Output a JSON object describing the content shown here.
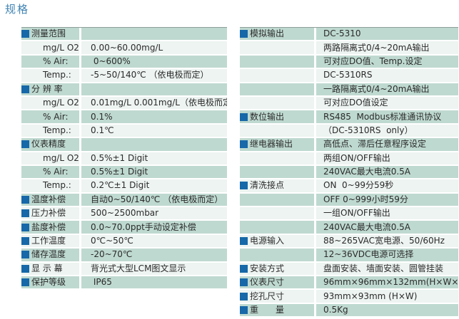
{
  "page": {
    "title": "规格"
  },
  "colors": {
    "title_blue": "#4285b3",
    "row_green": "#bed9d0",
    "row_pale": "#edf4f1",
    "square_blue": "#1668a8",
    "text": "#2b2b2b",
    "table_line": "#8e9e99"
  },
  "icons": {
    "bullet": "blue-square-bullet-icon"
  },
  "tables": {
    "left": {
      "rows": [
        {
          "label": "测量范围",
          "value": "",
          "header": true
        },
        {
          "label": "mg/L O2:",
          "value": "0.00~60.00mg/L",
          "sub": true
        },
        {
          "label": "% Air:",
          "value": " 0~600%",
          "sub": true
        },
        {
          "label": "Temp.:",
          "value": "-5~50/140℃ （依电极而定）",
          "sub": true
        },
        {
          "label": "分 辨 率",
          "value": "",
          "header": true
        },
        {
          "label": "mg/L O2:",
          "value": "0.01mg/L 0.001mg/L（依电极而定）",
          "sub": true
        },
        {
          "label": "% Air:",
          "value": "0.1%",
          "sub": true
        },
        {
          "label": "Temp.:",
          "value": "0.1℃",
          "sub": true
        },
        {
          "label": "仪表精度",
          "value": "",
          "header": true
        },
        {
          "label": "mg/L O2:",
          "value": "0.5%±1 Digit",
          "sub": true
        },
        {
          "label": "% Air:",
          "value": "0.5%±1 Digit",
          "sub": true
        },
        {
          "label": "Temp.:",
          "value": "0.2℃±1 Digit",
          "sub": true
        },
        {
          "label": "温度补偿",
          "value": "自动0~50/140℃ （依电极而定）",
          "header": true
        },
        {
          "label": "压力补偿",
          "value": "500~2500mbar",
          "header": true
        },
        {
          "label": "盐度补偿",
          "value": "0.0~70.0ppt手动设定补偿",
          "header": true
        },
        {
          "label": "工作温度",
          "value": "0℃~50℃",
          "header": true
        },
        {
          "label": "储存温度",
          "value": "-20~70℃",
          "header": true
        },
        {
          "label": "显 示 幕",
          "value": "背光式大型LCM图文显示",
          "header": true
        },
        {
          "label": "保护等级",
          "value": " IP65",
          "header": true
        }
      ]
    },
    "right": {
      "rows": [
        {
          "label": "模拟输出",
          "value": "DC-5310",
          "header": true
        },
        {
          "label": "",
          "value": "两路隔离式0/4~20mA输出"
        },
        {
          "label": "",
          "value": "可对应DO值、Temp.设定"
        },
        {
          "label": "",
          "value": "DC-5310RS"
        },
        {
          "label": "",
          "value": "一路隔离式0/4~20mA输出"
        },
        {
          "label": "",
          "value": "可对应DO值设定"
        },
        {
          "label": "数位输出",
          "value": "RS485  Modbus标准通讯协议",
          "header": true
        },
        {
          "label": "",
          "value": "（DC-5310RS  only）"
        },
        {
          "label": "继电器输出",
          "value": "高低点、滞后任意程序设定",
          "header": true
        },
        {
          "label": "",
          "value": "两组ON/OFF输出"
        },
        {
          "label": "",
          "value": "240VAC最大电流0.5A"
        },
        {
          "label": "清洗接点",
          "value": "ON  0~99分59秒",
          "header": true
        },
        {
          "label": "",
          "value": "OFF 0~999小时59分"
        },
        {
          "label": "",
          "value": "一组ON/OFF输出"
        },
        {
          "label": "",
          "value": "240VAC最大电流0.5A"
        },
        {
          "label": "电源输入",
          "value": "88~265VAC宽电源、50/60Hz",
          "header": true
        },
        {
          "label": "",
          "value": "12~36VDC电源可选择"
        },
        {
          "label": "安装方式",
          "value": "盘面安装、墙面安装、圆管挂装",
          "header": true
        },
        {
          "label": "仪表尺寸",
          "value": "96mm×96mm×132mm(H×W×D)",
          "header": true
        },
        {
          "label": "挖孔尺寸",
          "value": "93mm×93mm (H×W)",
          "header": true
        },
        {
          "label": "重　　量",
          "value": "0.5Kg",
          "header": true
        }
      ]
    }
  }
}
